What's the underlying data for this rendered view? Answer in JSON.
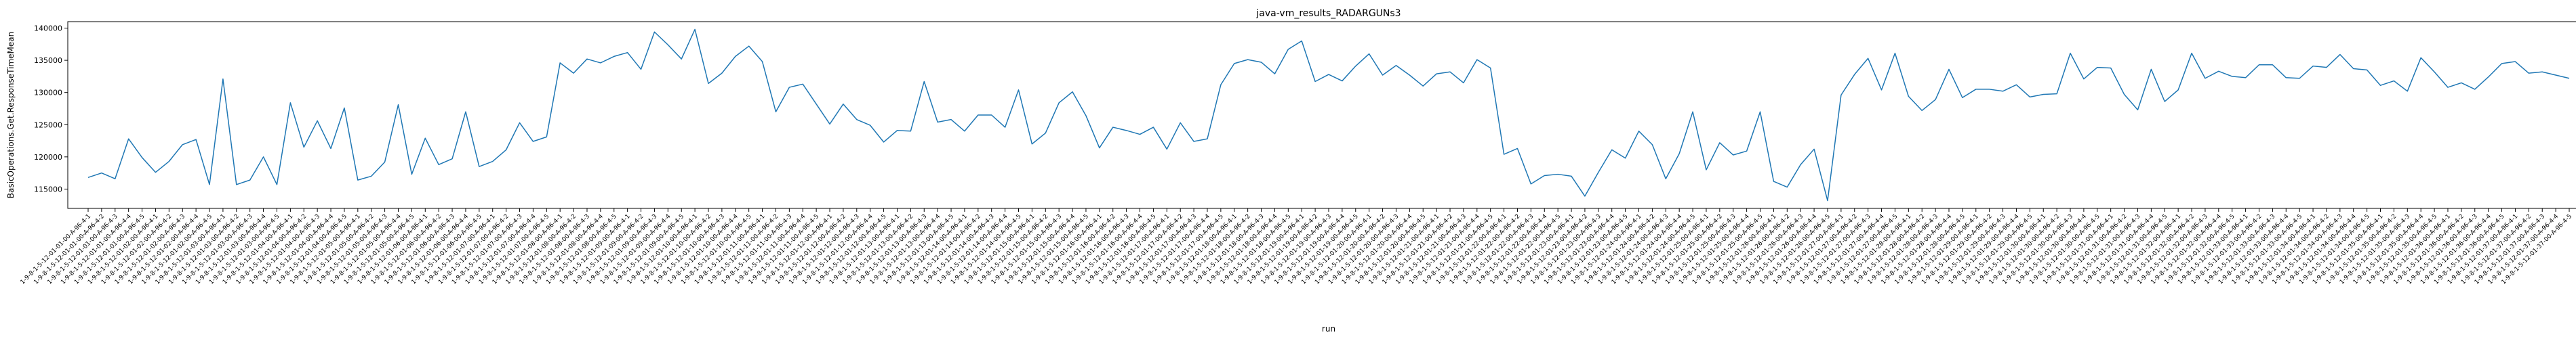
{
  "chart_data": {
    "type": "line",
    "title": "java-vm_results_RADARGUNs3",
    "xlabel": "run",
    "ylabel": "BasicOperations.Get.ResponseTimeMean",
    "ylim": [
      112000,
      141000
    ],
    "yticks": [
      115000,
      120000,
      125000,
      130000,
      135000,
      140000
    ],
    "ytick_labels": [
      "115000",
      "120000",
      "125000",
      "130000",
      "135000",
      "140000"
    ],
    "grid": false,
    "legend": "none",
    "line_color": "#1f77b4",
    "series": [
      {
        "values": [
          116800,
          117500,
          116600,
          122800,
          119900,
          117600,
          119300,
          121900,
          122700,
          115700,
          132100,
          115700,
          116400,
          120000,
          115700,
          128400,
          121500,
          125600,
          121300,
          127600,
          116400,
          117000,
          119200,
          128100,
          117300,
          122900,
          118800,
          119700,
          127000,
          118500,
          119300,
          121100,
          125300,
          122400,
          123100,
          134600,
          133000,
          135200,
          134600,
          135600,
          136200,
          133600,
          139400,
          137400,
          135200,
          139800,
          131400,
          133000,
          135600,
          137200,
          134800,
          127000,
          130800,
          131300,
          128200,
          125100,
          128200,
          125800,
          124900,
          122300,
          124100,
          124000,
          131700,
          125400,
          125800,
          124000,
          126500,
          126500,
          124600,
          130400,
          122000,
          123700,
          128400,
          130100,
          126400,
          121400,
          124600,
          124100,
          123500,
          124600,
          121200,
          125300,
          122400,
          122800,
          131200,
          134500,
          135100,
          134700,
          132900,
          136700,
          138000,
          131700,
          132800,
          131800,
          134100,
          136000,
          132700,
          134200,
          132700,
          131000,
          132900,
          133200,
          131500,
          135100,
          133800,
          120400,
          121300,
          115800,
          117100,
          117300,
          117000,
          113900,
          117600,
          121100,
          119800,
          124000,
          121900,
          116600,
          120500,
          127000,
          118000,
          122200,
          120300,
          120900,
          127000,
          116200,
          115300,
          118800,
          121200,
          113200,
          129600,
          132800,
          135300,
          130400,
          136100,
          129400,
          127200,
          128900,
          133600,
          129200,
          130500,
          130500,
          130200,
          131200,
          129300,
          129700,
          129800,
          136100,
          132100,
          133900,
          133800,
          129700,
          127300,
          133600,
          128600,
          130400,
          136100,
          132200,
          133300,
          132500,
          132300,
          134300,
          134300,
          132300,
          132200,
          134100,
          133900,
          135900,
          133700,
          133500,
          131100,
          131800,
          130200,
          135400,
          133200,
          130800,
          131500,
          130500,
          132400,
          134500,
          134800,
          133000,
          133200,
          132700,
          132200
        ]
      }
    ],
    "categories": [
      "1-9-8-1-5-12-01-01-00-A-96-4-1",
      "1-9-8-1-5-12-01-01-00-A-96-4-2",
      "1-9-8-1-5-12-01-01-00-A-96-4-3",
      "1-9-8-1-5-12-01-01-00-A-96-4-4",
      "1-9-8-1-5-12-01-01-00-A-96-4-5",
      "1-9-8-1-5-12-01-02-00-A-96-4-1",
      "1-9-8-1-5-12-01-02-00-A-96-4-2",
      "1-9-8-1-5-12-01-02-00-A-96-4-3",
      "1-9-8-1-5-12-01-02-00-A-96-4-4",
      "1-9-8-1-5-12-01-02-00-A-96-4-5",
      "1-9-8-1-5-12-01-03-00-A-96-4-1",
      "1-9-8-1-5-12-01-03-00-A-96-4-2",
      "1-9-8-1-5-12-01-03-00-A-96-4-3",
      "1-9-8-1-5-12-01-03-00-A-96-4-4",
      "1-9-8-1-5-12-01-03-00-A-96-4-5",
      "1-9-8-1-5-12-01-04-00-A-96-4-1",
      "1-9-8-1-5-12-01-04-00-A-96-4-2",
      "1-9-8-1-5-12-01-04-00-A-96-4-3",
      "1-9-8-1-5-12-01-04-00-A-96-4-4",
      "1-9-8-1-5-12-01-04-00-A-96-4-5",
      "1-9-8-1-5-12-01-05-00-A-96-4-1",
      "1-9-8-1-5-12-01-05-00-A-96-4-2",
      "1-9-8-1-5-12-01-05-00-A-96-4-3",
      "1-9-8-1-5-12-01-05-00-A-96-4-4",
      "1-9-8-1-5-12-01-05-00-A-96-4-5",
      "1-9-8-1-5-12-01-06-00-A-96-4-1",
      "1-9-8-1-5-12-01-06-00-A-96-4-2",
      "1-9-8-1-5-12-01-06-00-A-96-4-3",
      "1-9-8-1-5-12-01-06-00-A-96-4-4",
      "1-9-8-1-5-12-01-06-00-A-96-4-5",
      "1-9-8-1-5-12-01-07-00-A-96-4-1",
      "1-9-8-1-5-12-01-07-00-A-96-4-2",
      "1-9-8-1-5-12-01-07-00-A-96-4-3",
      "1-9-8-1-5-12-01-07-00-A-96-4-4",
      "1-9-8-1-5-12-01-07-00-A-96-4-5",
      "1-9-8-1-5-12-01-08-00-A-96-4-1",
      "1-9-8-1-5-12-01-08-00-A-96-4-2",
      "1-9-8-1-5-12-01-08-00-A-96-4-3",
      "1-9-8-1-5-12-01-08-00-A-96-4-4",
      "1-9-8-1-5-12-01-08-00-A-96-4-5",
      "1-9-8-1-5-12-01-09-00-A-96-4-1",
      "1-9-8-1-5-12-01-09-00-A-96-4-2",
      "1-9-8-1-5-12-01-09-00-A-96-4-3",
      "1-9-8-1-5-12-01-09-00-A-96-4-4",
      "1-9-8-1-5-12-01-09-00-A-96-4-5",
      "1-9-8-1-5-12-01-10-00-A-96-4-1",
      "1-9-8-1-5-12-01-10-00-A-96-4-2",
      "1-9-8-1-5-12-01-10-00-A-96-4-3",
      "1-9-8-1-5-12-01-10-00-A-96-4-4",
      "1-9-8-1-5-12-01-10-00-A-96-4-5",
      "1-9-8-1-5-12-01-11-00-A-96-4-1",
      "1-9-8-1-5-12-01-11-00-A-96-4-2",
      "1-9-8-1-5-12-01-11-00-A-96-4-3",
      "1-9-8-1-5-12-01-11-00-A-96-4-4",
      "1-9-8-1-5-12-01-11-00-A-96-4-5",
      "1-9-8-1-5-12-01-12-00-A-96-4-1",
      "1-9-8-1-5-12-01-12-00-A-96-4-2",
      "1-9-8-1-5-12-01-12-00-A-96-4-3",
      "1-9-8-1-5-12-01-12-00-A-96-4-4",
      "1-9-8-1-5-12-01-12-00-A-96-4-5",
      "1-9-8-1-5-12-01-13-00-A-96-4-1",
      "1-9-8-1-5-12-01-13-00-A-96-4-2",
      "1-9-8-1-5-12-01-13-00-A-96-4-3",
      "1-9-8-1-5-12-01-13-00-A-96-4-4",
      "1-9-8-1-5-12-01-13-00-A-96-4-5",
      "1-9-8-1-5-12-01-14-00-A-96-4-1",
      "1-9-8-1-5-12-01-14-00-A-96-4-2",
      "1-9-8-1-5-12-01-14-00-A-96-4-3",
      "1-9-8-1-5-12-01-14-00-A-96-4-4",
      "1-9-8-1-5-12-01-14-00-A-96-4-5",
      "1-9-8-1-5-12-01-15-00-A-96-4-1",
      "1-9-8-1-5-12-01-15-00-A-96-4-2",
      "1-9-8-1-5-12-01-15-00-A-96-4-3",
      "1-9-8-1-5-12-01-15-00-A-96-4-4",
      "1-9-8-1-5-12-01-15-00-A-96-4-5",
      "1-9-8-1-5-12-01-16-00-A-96-4-1",
      "1-9-8-1-5-12-01-16-00-A-96-4-2",
      "1-9-8-1-5-12-01-16-00-A-96-4-3",
      "1-9-8-1-5-12-01-16-00-A-96-4-4",
      "1-9-8-1-5-12-01-16-00-A-96-4-5",
      "1-9-8-1-5-12-01-17-00-A-96-4-1",
      "1-9-8-1-5-12-01-17-00-A-96-4-2",
      "1-9-8-1-5-12-01-17-00-A-96-4-3",
      "1-9-8-1-5-12-01-17-00-A-96-4-4",
      "1-9-8-1-5-12-01-17-00-A-96-4-5",
      "1-9-8-1-5-12-01-18-00-A-96-4-1",
      "1-9-8-1-5-12-01-18-00-A-96-4-2",
      "1-9-8-1-5-12-01-18-00-A-96-4-3",
      "1-9-8-1-5-12-01-18-00-A-96-4-4",
      "1-9-8-1-5-12-01-18-00-A-96-4-5",
      "1-9-8-1-5-12-01-19-00-A-96-4-1",
      "1-9-8-1-5-12-01-19-00-A-96-4-2",
      "1-9-8-1-5-12-01-19-00-A-96-4-3",
      "1-9-8-1-5-12-01-19-00-A-96-4-4",
      "1-9-8-1-5-12-01-19-00-A-96-4-5",
      "1-9-8-1-5-12-01-20-00-A-96-4-1",
      "1-9-8-1-5-12-01-20-00-A-96-4-2",
      "1-9-8-1-5-12-01-20-00-A-96-4-3",
      "1-9-8-1-5-12-01-20-00-A-96-4-4",
      "1-9-8-1-5-12-01-20-00-A-96-4-5",
      "1-9-8-1-5-12-01-21-00-A-96-4-1",
      "1-9-8-1-5-12-01-21-00-A-96-4-2",
      "1-9-8-1-5-12-01-21-00-A-96-4-3",
      "1-9-8-1-5-12-01-21-00-A-96-4-4",
      "1-9-8-1-5-12-01-21-00-A-96-4-5",
      "1-9-8-1-5-12-01-22-00-A-96-4-1",
      "1-9-8-1-5-12-01-22-00-A-96-4-2",
      "1-9-8-1-5-12-01-22-00-A-96-4-3",
      "1-9-8-1-5-12-01-22-00-A-96-4-4",
      "1-9-8-1-5-12-01-22-00-A-96-4-5",
      "1-9-8-1-5-12-01-23-00-A-96-4-1",
      "1-9-8-1-5-12-01-23-00-A-96-4-2",
      "1-9-8-1-5-12-01-23-00-A-96-4-3",
      "1-9-8-1-5-12-01-23-00-A-96-4-4",
      "1-9-8-1-5-12-01-23-00-A-96-4-5",
      "1-9-8-1-5-12-01-24-00-A-96-4-1",
      "1-9-8-1-5-12-01-24-00-A-96-4-2",
      "1-9-8-1-5-12-01-24-00-A-96-4-3",
      "1-9-8-1-5-12-01-24-00-A-96-4-4",
      "1-9-8-1-5-12-01-24-00-A-96-4-5",
      "1-9-8-1-5-12-01-25-00-A-96-4-1",
      "1-9-8-1-5-12-01-25-00-A-96-4-2",
      "1-9-8-1-5-12-01-25-00-A-96-4-3",
      "1-9-8-1-5-12-01-25-00-A-96-4-4",
      "1-9-8-1-5-12-01-25-00-A-96-4-5",
      "1-9-8-1-5-12-01-26-00-A-96-4-1",
      "1-9-8-1-5-12-01-26-00-A-96-4-2",
      "1-9-8-1-5-12-01-26-00-A-96-4-3",
      "1-9-8-1-5-12-01-26-00-A-96-4-4",
      "1-9-8-1-5-12-01-26-00-A-96-4-5",
      "1-9-8-1-5-12-01-27-00-A-96-4-1",
      "1-9-8-1-5-12-01-27-00-A-96-4-2",
      "1-9-8-1-5-12-01-27-00-A-96-4-3",
      "1-9-8-1-5-12-01-27-00-A-96-4-4",
      "1-9-8-1-5-12-01-27-00-A-96-4-5",
      "1-9-8-1-5-12-01-28-00-A-96-4-1",
      "1-9-8-1-5-12-01-28-00-A-96-4-2",
      "1-9-8-1-5-12-01-28-00-A-96-4-3",
      "1-9-8-1-5-12-01-28-00-A-96-4-4",
      "1-9-8-1-5-12-01-28-00-A-96-4-5",
      "1-9-8-1-5-12-01-29-00-A-96-4-1",
      "1-9-8-1-5-12-01-29-00-A-96-4-2",
      "1-9-8-1-5-12-01-29-00-A-96-4-3",
      "1-9-8-1-5-12-01-29-00-A-96-4-4",
      "1-9-8-1-5-12-01-29-00-A-96-4-5",
      "1-9-8-1-5-12-01-30-00-A-96-4-1",
      "1-9-8-1-5-12-01-30-00-A-96-4-2",
      "1-9-8-1-5-12-01-30-00-A-96-4-3",
      "1-9-8-1-5-12-01-30-00-A-96-4-4",
      "1-9-8-1-5-12-01-30-00-A-96-4-5",
      "1-9-8-1-5-12-01-31-00-A-96-4-1",
      "1-9-8-1-5-12-01-31-00-A-96-4-2",
      "1-9-8-1-5-12-01-31-00-A-96-4-3",
      "1-9-8-1-5-12-01-31-00-A-96-4-4",
      "1-9-8-1-5-12-01-31-00-A-96-4-5",
      "1-9-8-1-5-12-01-32-00-A-96-4-1",
      "1-9-8-1-5-12-01-32-00-A-96-4-2",
      "1-9-8-1-5-12-01-32-00-A-96-4-3",
      "1-9-8-1-5-12-01-32-00-A-96-4-4",
      "1-9-8-1-5-12-01-32-00-A-96-4-5",
      "1-9-8-1-5-12-01-33-00-A-96-4-1",
      "1-9-8-1-5-12-01-33-00-A-96-4-2",
      "1-9-8-1-5-12-01-33-00-A-96-4-3",
      "1-9-8-1-5-12-01-33-00-A-96-4-4",
      "1-9-8-1-5-12-01-33-00-A-96-4-5",
      "1-9-8-1-5-12-01-34-00-A-96-4-1",
      "1-9-8-1-5-12-01-34-00-A-96-4-2",
      "1-9-8-1-5-12-01-34-00-A-96-4-3",
      "1-9-8-1-5-12-01-34-00-A-96-4-4",
      "1-9-8-1-5-12-01-34-00-A-96-4-5",
      "1-9-8-1-5-12-01-35-00-A-96-4-1",
      "1-9-8-1-5-12-01-35-00-A-96-4-2",
      "1-9-8-1-5-12-01-35-00-A-96-4-3",
      "1-9-8-1-5-12-01-35-00-A-96-4-4",
      "1-9-8-1-5-12-01-35-00-A-96-4-5",
      "1-9-8-1-5-12-01-36-00-A-96-4-1",
      "1-9-8-1-5-12-01-36-00-A-96-4-2",
      "1-9-8-1-5-12-01-36-00-A-96-4-3",
      "1-9-8-1-5-12-01-36-00-A-96-4-4",
      "1-9-8-1-5-12-01-36-00-A-96-4-5",
      "1-9-8-1-5-12-01-37-00-A-96-4-1",
      "1-9-8-1-5-12-01-37-00-A-96-4-2",
      "1-9-8-1-5-12-01-37-00-A-96-4-3",
      "1-9-8-1-5-12-01-37-00-A-96-4-4",
      "1-9-8-1-5-12-01-37-00-A-96-4-5"
    ]
  }
}
